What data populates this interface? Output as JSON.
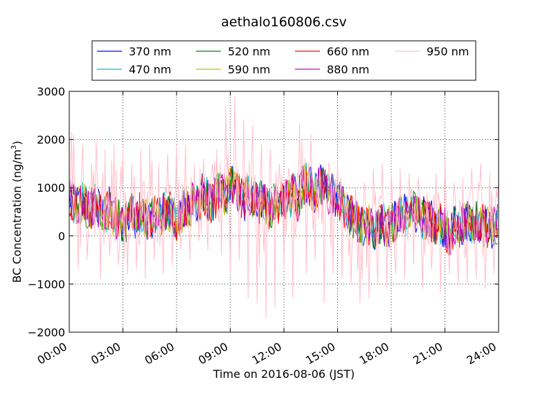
{
  "chart_data": {
    "type": "line",
    "title": "aethalo160806.csv",
    "xlabel": "Time on 2016-08-06 (JST)",
    "ylabel": "BC Concentration (ng/m",
    "ylabel_superscript": "3",
    "ylabel_suffix": ")",
    "x_unit": "hours",
    "xlim": [
      0,
      24
    ],
    "ylim": [
      -2000,
      3000
    ],
    "x_ticks": [
      0,
      3,
      6,
      9,
      12,
      15,
      18,
      21,
      24
    ],
    "x_tick_labels": [
      "00:00",
      "03:00",
      "06:00",
      "09:00",
      "12:00",
      "15:00",
      "18:00",
      "21:00",
      "24:00"
    ],
    "y_ticks": [
      -2000,
      -1000,
      0,
      1000,
      2000,
      3000
    ],
    "y_tick_labels": [
      "−2000",
      "−1000",
      "0",
      "1000",
      "2000",
      "3000"
    ],
    "grid": true,
    "legend_position": "top",
    "series": [
      {
        "name": "370 nm",
        "color": "#0000ff"
      },
      {
        "name": "470 nm",
        "color": "#00bfbf"
      },
      {
        "name": "520 nm",
        "color": "#008000"
      },
      {
        "name": "590 nm",
        "color": "#bfbf00"
      },
      {
        "name": "660 nm",
        "color": "#ff0000"
      },
      {
        "name": "880 nm",
        "color": "#bf00bf"
      },
      {
        "name": "950 nm",
        "color": "#ffc0cb"
      }
    ],
    "x": [
      0,
      0.25,
      0.5,
      0.75,
      1,
      1.25,
      1.5,
      1.75,
      2,
      2.25,
      2.5,
      2.75,
      3,
      3.25,
      3.5,
      3.75,
      4,
      4.25,
      4.5,
      4.75,
      5,
      5.25,
      5.5,
      5.75,
      6,
      6.25,
      6.5,
      6.75,
      7,
      7.25,
      7.5,
      7.75,
      8,
      8.25,
      8.5,
      8.75,
      9,
      9.25,
      9.5,
      9.75,
      10,
      10.25,
      10.5,
      10.75,
      11,
      11.25,
      11.5,
      11.75,
      12,
      12.25,
      12.5,
      12.75,
      13,
      13.25,
      13.5,
      13.75,
      14,
      14.25,
      14.5,
      14.75,
      15,
      15.25,
      15.5,
      15.75,
      16,
      16.25,
      16.5,
      16.75,
      17,
      17.25,
      17.5,
      17.75,
      18,
      18.25,
      18.5,
      18.75,
      19,
      19.25,
      19.5,
      19.75,
      20,
      20.25,
      20.5,
      20.75,
      21,
      21.25,
      21.5,
      21.75,
      22,
      22.25,
      22.5,
      22.75,
      23,
      23.25,
      23.5,
      23.75,
      24
    ],
    "base_values": [
      800,
      700,
      650,
      750,
      600,
      550,
      700,
      500,
      450,
      600,
      400,
      350,
      200,
      300,
      450,
      350,
      500,
      400,
      300,
      450,
      350,
      500,
      600,
      400,
      300,
      450,
      650,
      550,
      800,
      700,
      900,
      750,
      700,
      850,
      1000,
      800,
      1100,
      950,
      850,
      700,
      900,
      800,
      650,
      750,
      600,
      550,
      700,
      650,
      800,
      750,
      900,
      700,
      1000,
      1100,
      1000,
      900,
      1050,
      1000,
      900,
      850,
      800,
      700,
      500,
      450,
      300,
      200,
      150,
      250,
      100,
      200,
      300,
      150,
      250,
      300,
      400,
      450,
      350,
      500,
      450,
      400,
      350,
      300,
      200,
      250,
      150,
      0,
      200,
      150,
      250,
      300,
      250,
      300,
      250,
      200,
      150,
      200,
      250
    ],
    "pink_values": [
      900,
      2100,
      -700,
      1900,
      -500,
      1500,
      2000,
      -900,
      1800,
      -400,
      1900,
      -600,
      1800,
      -800,
      1500,
      -700,
      1800,
      -900,
      1900,
      -500,
      1500,
      -800,
      1700,
      -600,
      1900,
      -300,
      1900,
      -500,
      1500,
      -100,
      1600,
      -300,
      1500,
      1800,
      -400,
      2700,
      -800,
      2900,
      -500,
      2400,
      -1300,
      2300,
      -1400,
      1900,
      -1700,
      1800,
      -1500,
      1500,
      -700,
      1400,
      -1300,
      1300,
      2000,
      -800,
      2100,
      -500,
      1500,
      -1400,
      1500,
      -800,
      1500,
      -900,
      900,
      -1000,
      1000,
      -1400,
      1100,
      -1300,
      1400,
      -1000,
      1500,
      -1100,
      1300,
      -800,
      1400,
      -900,
      1300,
      -600,
      1200,
      -1100,
      900,
      -700,
      1300,
      -1200,
      1600,
      -800,
      1100,
      -1000,
      1200,
      -1000,
      1400,
      -900,
      1500,
      -1100,
      1300,
      -800,
      1100
    ]
  }
}
